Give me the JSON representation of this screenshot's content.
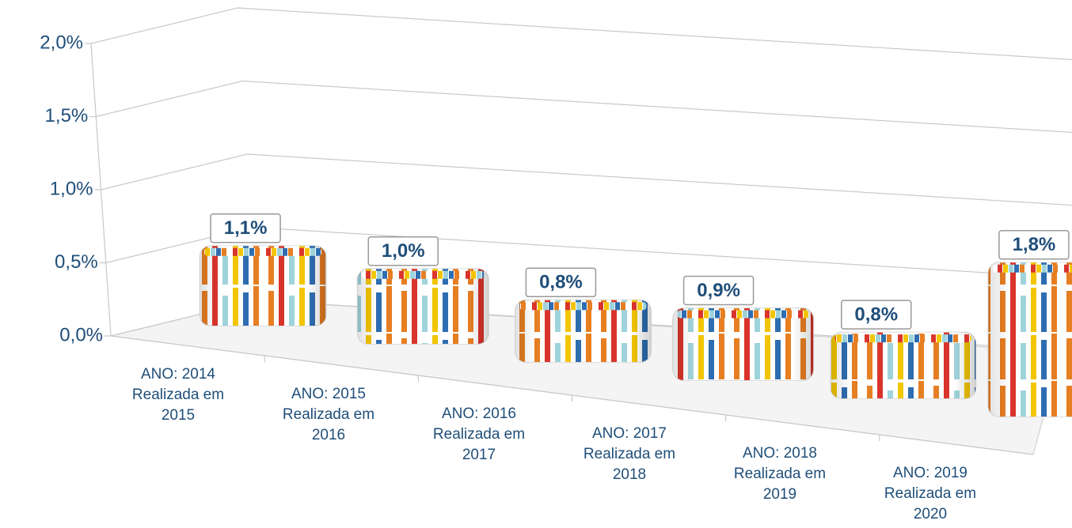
{
  "chart_data": {
    "type": "bar",
    "categories": [
      [
        "ANO: 2014",
        "Realizada em",
        "2015"
      ],
      [
        "ANO: 2015",
        "Realizada em",
        "2016"
      ],
      [
        "ANO: 2016",
        "Realizada em",
        "2017"
      ],
      [
        "ANO: 2017",
        "Realizada em",
        "2018"
      ],
      [
        "ANO: 2018",
        "Realizada em",
        "2019"
      ],
      [
        "ANO: 2019",
        "Realizada em",
        "2020"
      ]
    ],
    "values": [
      1.1,
      1.0,
      0.8,
      0.9,
      0.8,
      1.8
    ],
    "value_labels": [
      "1,1%",
      "1,0%",
      "0,8%",
      "0,9%",
      "0,8%",
      "1,8%"
    ],
    "ylim": [
      0,
      2
    ],
    "yticks": [
      {
        "value": 0,
        "label": "0,0%"
      },
      {
        "value": 0.5,
        "label": "0,5%"
      },
      {
        "value": 1,
        "label": "1,0%"
      },
      {
        "value": 1.5,
        "label": "1,5%"
      },
      {
        "value": 2,
        "label": "2,0%"
      }
    ],
    "grid": true
  }
}
